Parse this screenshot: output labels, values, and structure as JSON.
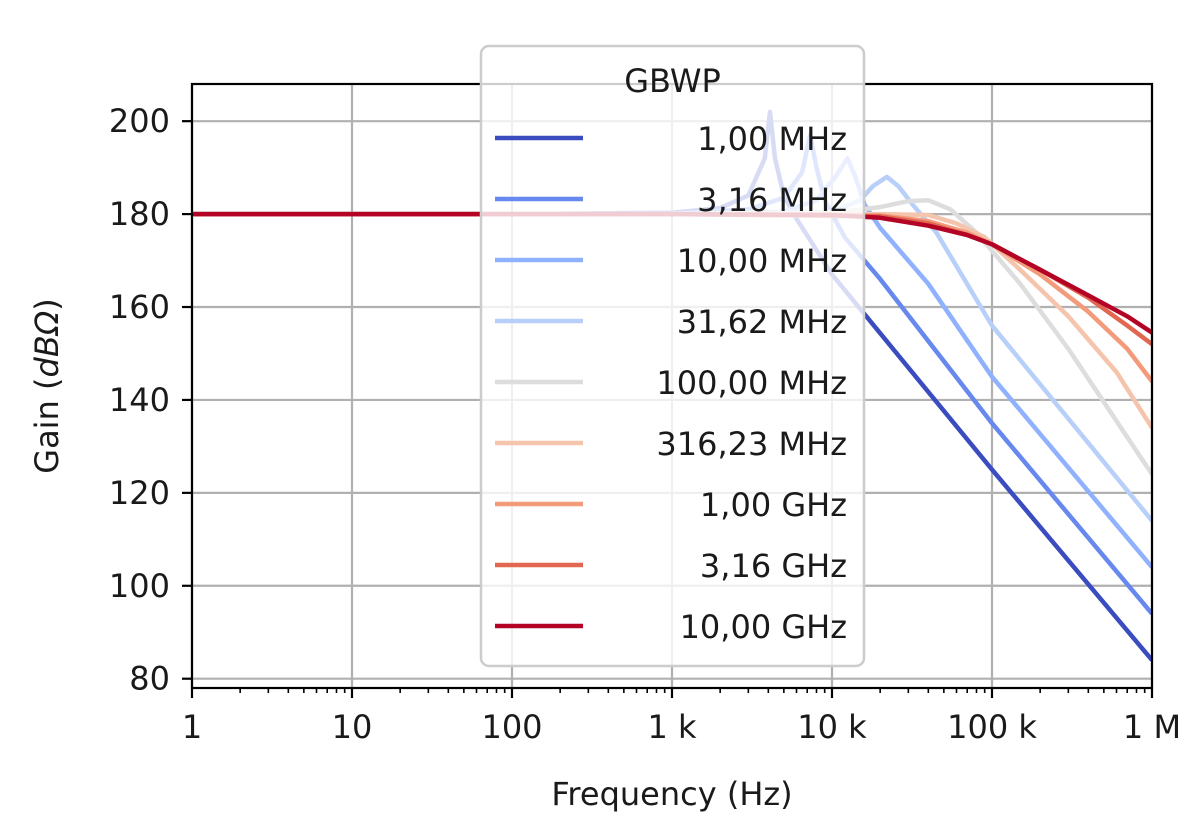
{
  "chart_data": {
    "type": "line",
    "xlabel": "Frequency (Hz)",
    "ylabel_prefix": "Gain (",
    "ylabel_unit": "dBΩ",
    "ylabel_suffix": ")",
    "xscale": "log",
    "xlim": [
      1,
      1000000
    ],
    "ylim": [
      78,
      208
    ],
    "x_ticks": [
      {
        "value": 1,
        "label": "1"
      },
      {
        "value": 10,
        "label": "10"
      },
      {
        "value": 100,
        "label": "100"
      },
      {
        "value": 1000,
        "label": "1 k"
      },
      {
        "value": 10000,
        "label": "10 k"
      },
      {
        "value": 100000,
        "label": "100 k"
      },
      {
        "value": 1000000,
        "label": "1 M"
      }
    ],
    "y_ticks": [
      80,
      100,
      120,
      140,
      160,
      180,
      200
    ],
    "grid": true,
    "legend": {
      "title": "GBWP",
      "placement": "top-center"
    },
    "low_freq_gain": 180,
    "series": [
      {
        "name": "1,00 MHz",
        "color": "#3b4cc0",
        "points": [
          [
            1,
            180
          ],
          [
            100,
            180
          ],
          [
            1000,
            180.3
          ],
          [
            2000,
            181.3
          ],
          [
            3000,
            184
          ],
          [
            3800,
            192
          ],
          [
            4100,
            202
          ],
          [
            4400,
            192
          ],
          [
            5000,
            184
          ],
          [
            6000,
            179
          ],
          [
            10000,
            167
          ],
          [
            100000,
            125
          ],
          [
            1000000,
            84
          ]
        ]
      },
      {
        "name": "3,16 MHz",
        "color": "#6788ee",
        "points": [
          [
            1,
            180
          ],
          [
            100,
            180
          ],
          [
            1000,
            180.1
          ],
          [
            3000,
            181
          ],
          [
            5000,
            183.5
          ],
          [
            6500,
            189
          ],
          [
            7300,
            197
          ],
          [
            8000,
            190
          ],
          [
            9000,
            183
          ],
          [
            12000,
            175
          ],
          [
            20000,
            166
          ],
          [
            100000,
            135
          ],
          [
            1000000,
            94
          ]
        ]
      },
      {
        "name": "10,00 MHz",
        "color": "#8fb1fe",
        "points": [
          [
            1,
            180
          ],
          [
            1000,
            180
          ],
          [
            5000,
            180.5
          ],
          [
            8000,
            183
          ],
          [
            10500,
            188
          ],
          [
            12500,
            192
          ],
          [
            14000,
            188
          ],
          [
            16000,
            182
          ],
          [
            20000,
            177
          ],
          [
            40000,
            165
          ],
          [
            100000,
            145
          ],
          [
            1000000,
            104
          ]
        ]
      },
      {
        "name": "31,62 MHz",
        "color": "#b8d0f9",
        "points": [
          [
            1,
            180
          ],
          [
            1000,
            180
          ],
          [
            10000,
            180.5
          ],
          [
            15000,
            183
          ],
          [
            18000,
            186
          ],
          [
            22000,
            188
          ],
          [
            26000,
            186
          ],
          [
            32000,
            182
          ],
          [
            45000,
            176
          ],
          [
            100000,
            156
          ],
          [
            1000000,
            114
          ]
        ]
      },
      {
        "name": "100,00 MHz",
        "color": "#dddddd",
        "points": [
          [
            1,
            180
          ],
          [
            1000,
            180
          ],
          [
            10000,
            180.3
          ],
          [
            20000,
            181.5
          ],
          [
            30000,
            182.8
          ],
          [
            40000,
            183
          ],
          [
            55000,
            181
          ],
          [
            80000,
            176
          ],
          [
            150000,
            165
          ],
          [
            300000,
            151
          ],
          [
            1000000,
            124
          ]
        ]
      },
      {
        "name": "316,23 MHz",
        "color": "#f5c4ac",
        "points": [
          [
            1,
            180
          ],
          [
            1000,
            180
          ],
          [
            20000,
            180
          ],
          [
            40000,
            179.8
          ],
          [
            60000,
            178
          ],
          [
            90000,
            175
          ],
          [
            150000,
            168
          ],
          [
            300000,
            158
          ],
          [
            600000,
            146
          ],
          [
            1000000,
            134
          ]
        ]
      },
      {
        "name": "1,00 GHz",
        "color": "#f39a7b",
        "points": [
          [
            1,
            180
          ],
          [
            1000,
            180
          ],
          [
            20000,
            179.7
          ],
          [
            40000,
            178.5
          ],
          [
            70000,
            176
          ],
          [
            100000,
            173.5
          ],
          [
            200000,
            167
          ],
          [
            400000,
            159
          ],
          [
            700000,
            151
          ],
          [
            1000000,
            144
          ]
        ]
      },
      {
        "name": "3,16 GHz",
        "color": "#e16751",
        "points": [
          [
            1,
            180
          ],
          [
            1000,
            180
          ],
          [
            20000,
            179.5
          ],
          [
            40000,
            178
          ],
          [
            70000,
            175.5
          ],
          [
            100000,
            173.5
          ],
          [
            200000,
            168
          ],
          [
            400000,
            162
          ],
          [
            700000,
            156
          ],
          [
            1000000,
            152
          ]
        ]
      },
      {
        "name": "10,00 GHz",
        "color": "#b40426",
        "points": [
          [
            1,
            180
          ],
          [
            1000,
            180
          ],
          [
            10000,
            179.8
          ],
          [
            20000,
            179.2
          ],
          [
            40000,
            177.5
          ],
          [
            70000,
            175.5
          ],
          [
            100000,
            173.5
          ],
          [
            200000,
            168
          ],
          [
            400000,
            162.5
          ],
          [
            700000,
            158
          ],
          [
            1000000,
            154.5
          ]
        ]
      }
    ]
  }
}
